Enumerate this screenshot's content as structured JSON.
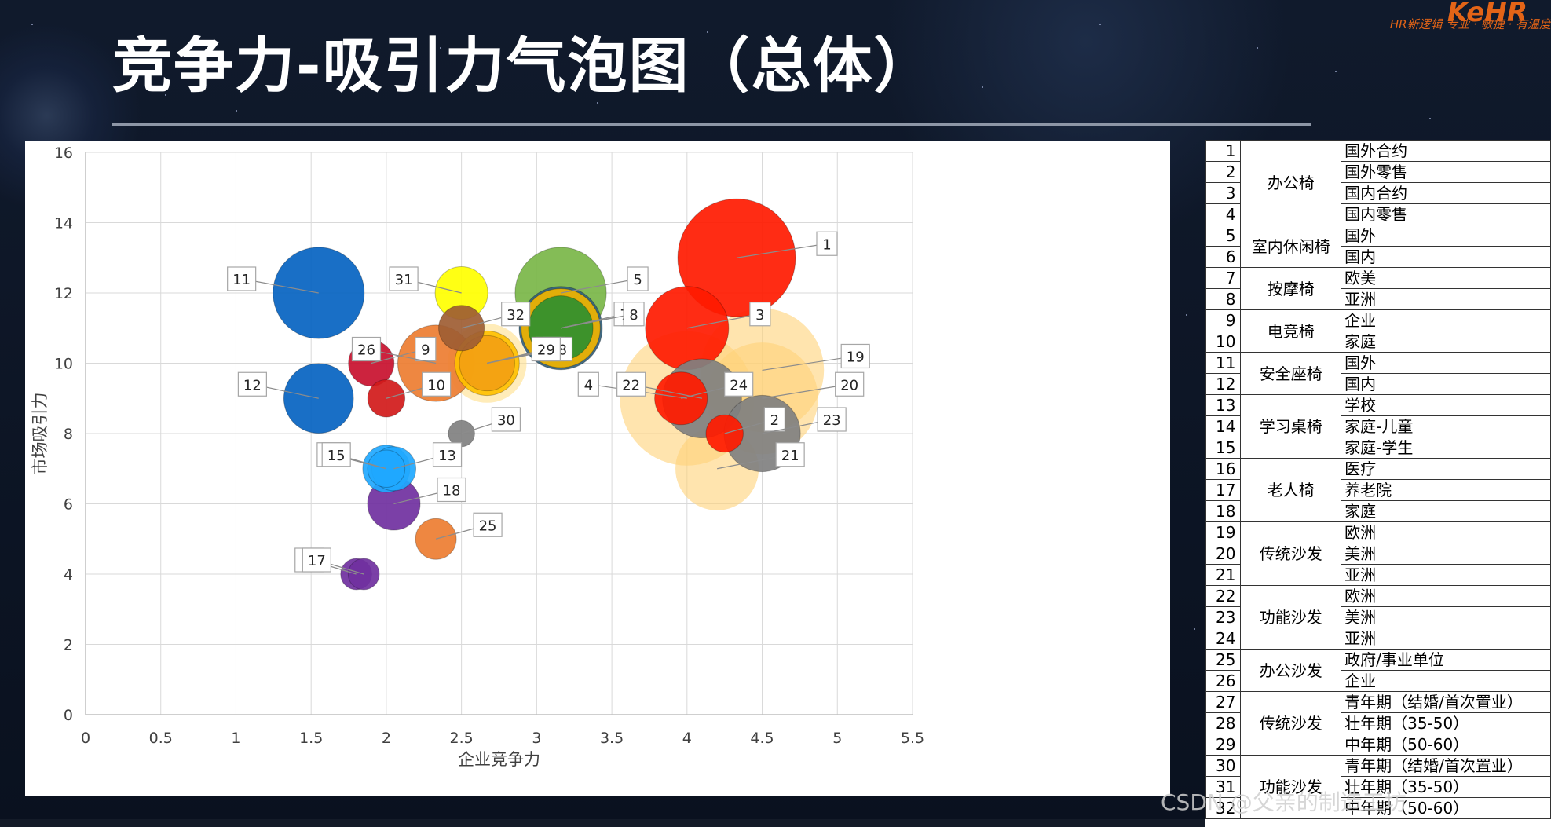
{
  "slide": {
    "title": "竞争力-吸引力气泡图（总体）",
    "logo_text": "KeHR",
    "logo_sub": "HR新逻辑 专业 · 敏捷 · 有温度",
    "watermark": "CSDN @父亲的制造工坊"
  },
  "chart_data": {
    "type": "scatter",
    "xlabel": "企业竞争力",
    "ylabel": "市场吸引力",
    "xlim": [
      0,
      5.5
    ],
    "ylim": [
      0,
      16
    ],
    "x_ticks": [
      "0",
      "0.5",
      "1",
      "1.5",
      "2",
      "2.5",
      "3",
      "3.5",
      "4",
      "4.5",
      "5",
      "5.5"
    ],
    "y_ticks": [
      "0",
      "2",
      "4",
      "6",
      "8",
      "10",
      "12",
      "14",
      "16"
    ],
    "grid": true,
    "points": [
      {
        "id": "1",
        "x": 4.33,
        "y": 13,
        "size": 1.0,
        "color": "#ff1a00",
        "dir": "r"
      },
      {
        "id": "2",
        "x": 4.25,
        "y": 8,
        "size": 0.1,
        "color": "#ff1a00",
        "dir": "r"
      },
      {
        "id": "3",
        "x": 4.0,
        "y": 11,
        "size": 0.5,
        "color": "#ff1a00",
        "dir": "r"
      },
      {
        "id": "4",
        "x": 4.0,
        "y": 9,
        "size": 1.3,
        "color": "#ffd278",
        "dir": "l"
      },
      {
        "id": "5",
        "x": 3.16,
        "y": 12,
        "size": 0.6,
        "color": "#7ab648",
        "dir": "r"
      },
      {
        "id": "6",
        "x": 3.16,
        "y": 11,
        "size": 0.45,
        "color": "#f0b400",
        "dir": "r"
      },
      {
        "id": "7",
        "x": 3.16,
        "y": 11,
        "size": 0.3,
        "color": "#2f8f2f",
        "dir": "r"
      },
      {
        "id": "8",
        "x": 3.16,
        "y": 11,
        "size": 0.5,
        "color": "#335f7a",
        "dir": "r"
      },
      {
        "id": "9",
        "x": 1.9,
        "y": 10,
        "size": 0.15,
        "color": "#c8102e",
        "dir": "r"
      },
      {
        "id": "10",
        "x": 2.0,
        "y": 9,
        "size": 0.1,
        "color": "#d11a1a",
        "dir": "r"
      },
      {
        "id": "11",
        "x": 1.55,
        "y": 12,
        "size": 0.6,
        "color": "#0563c1",
        "dir": "l"
      },
      {
        "id": "12",
        "x": 1.55,
        "y": 9,
        "size": 0.35,
        "color": "#0563c1",
        "dir": "l"
      },
      {
        "id": "13",
        "x": 2.05,
        "y": 7,
        "size": 0.14,
        "color": "#1fa8ff",
        "dir": "r"
      },
      {
        "id": "14",
        "x": 2.0,
        "y": 7,
        "size": 0.16,
        "color": "#1fa8ff",
        "dir": "l"
      },
      {
        "id": "15",
        "x": 2.0,
        "y": 7,
        "size": 0.1,
        "color": "#1fa8ff",
        "dir": "l"
      },
      {
        "id": "16",
        "x": 1.8,
        "y": 4,
        "size": 0.07,
        "color": "#7030a0",
        "dir": "l"
      },
      {
        "id": "17",
        "x": 1.85,
        "y": 4,
        "size": 0.07,
        "color": "#7030a0",
        "dir": "l"
      },
      {
        "id": "18",
        "x": 2.05,
        "y": 6,
        "size": 0.2,
        "color": "#7030a0",
        "dir": "r"
      },
      {
        "id": "19",
        "x": 4.5,
        "y": 9.8,
        "size": 1.1,
        "color": "#ffd278",
        "dir": "r"
      },
      {
        "id": "20",
        "x": 4.5,
        "y": 9,
        "size": 0.9,
        "color": "#ffd278",
        "dir": "r"
      },
      {
        "id": "21",
        "x": 4.2,
        "y": 7,
        "size": 0.5,
        "color": "#ffd278",
        "dir": "r"
      },
      {
        "id": "22",
        "x": 4.1,
        "y": 9,
        "size": 0.45,
        "color": "#808080",
        "dir": "l"
      },
      {
        "id": "23",
        "x": 4.5,
        "y": 8,
        "size": 0.42,
        "color": "#808080",
        "dir": "r"
      },
      {
        "id": "24",
        "x": 3.96,
        "y": 9,
        "size": 0.2,
        "color": "#ff1a00",
        "dir": "r"
      },
      {
        "id": "25",
        "x": 2.33,
        "y": 5,
        "size": 0.12,
        "color": "#ed7d31",
        "dir": "r"
      },
      {
        "id": "26",
        "x": 2.33,
        "y": 10,
        "size": 0.42,
        "color": "#ed7d31",
        "dir": "l"
      },
      {
        "id": "27",
        "x": 2.67,
        "y": 10,
        "size": 0.3,
        "color": "#ffc000",
        "dir": "r"
      },
      {
        "id": "28",
        "x": 2.67,
        "y": 10,
        "size": 0.45,
        "color": "#ffe08a",
        "dir": "r"
      },
      {
        "id": "29",
        "x": 2.67,
        "y": 10,
        "size": 0.22,
        "color": "#f3a012",
        "dir": "r"
      },
      {
        "id": "30",
        "x": 2.5,
        "y": 8,
        "size": 0.05,
        "color": "#808080",
        "dir": "r"
      },
      {
        "id": "31",
        "x": 2.5,
        "y": 12,
        "size": 0.2,
        "color": "#ffff00",
        "dir": "l"
      },
      {
        "id": "32",
        "x": 2.5,
        "y": 11,
        "size": 0.15,
        "color": "#9e5d33",
        "dir": "r"
      }
    ]
  },
  "legend_table": [
    {
      "num": "1",
      "category": "办公椅",
      "span": 4,
      "sub": "国外合约"
    },
    {
      "num": "2",
      "sub": "国外零售"
    },
    {
      "num": "3",
      "sub": "国内合约"
    },
    {
      "num": "4",
      "sub": "国内零售"
    },
    {
      "num": "5",
      "category": "室内休闲椅",
      "span": 2,
      "sub": "国外"
    },
    {
      "num": "6",
      "sub": "国内"
    },
    {
      "num": "7",
      "category": "按摩椅",
      "span": 2,
      "sub": "欧美"
    },
    {
      "num": "8",
      "sub": "亚洲"
    },
    {
      "num": "9",
      "category": "电竞椅",
      "span": 2,
      "sub": "企业"
    },
    {
      "num": "10",
      "sub": "家庭"
    },
    {
      "num": "11",
      "category": "安全座椅",
      "span": 2,
      "sub": "国外"
    },
    {
      "num": "12",
      "sub": "国内"
    },
    {
      "num": "13",
      "category": "学习桌椅",
      "span": 3,
      "sub": "学校"
    },
    {
      "num": "14",
      "sub": "家庭-儿童"
    },
    {
      "num": "15",
      "sub": "家庭-学生"
    },
    {
      "num": "16",
      "category": "老人椅",
      "span": 3,
      "sub": "医疗"
    },
    {
      "num": "17",
      "sub": "养老院"
    },
    {
      "num": "18",
      "sub": "家庭"
    },
    {
      "num": "19",
      "category": "传统沙发",
      "span": 3,
      "sub": "欧洲"
    },
    {
      "num": "20",
      "sub": "美洲"
    },
    {
      "num": "21",
      "sub": "亚洲"
    },
    {
      "num": "22",
      "category": "功能沙发",
      "span": 3,
      "sub": "欧洲"
    },
    {
      "num": "23",
      "sub": "美洲"
    },
    {
      "num": "24",
      "sub": "亚洲"
    },
    {
      "num": "25",
      "category": "办公沙发",
      "span": 2,
      "sub": "政府/事业单位"
    },
    {
      "num": "26",
      "sub": "企业"
    },
    {
      "num": "27",
      "category": "传统沙发",
      "span": 3,
      "sub": "青年期（结婚/首次置业）"
    },
    {
      "num": "28",
      "sub": "壮年期（35-50）"
    },
    {
      "num": "29",
      "sub": "中年期（50-60）"
    },
    {
      "num": "30",
      "category": "功能沙发",
      "span": 3,
      "sub": "青年期（结婚/首次置业）"
    },
    {
      "num": "31",
      "sub": "壮年期（35-50）"
    },
    {
      "num": "32",
      "sub": "中年期（50-60）"
    }
  ]
}
